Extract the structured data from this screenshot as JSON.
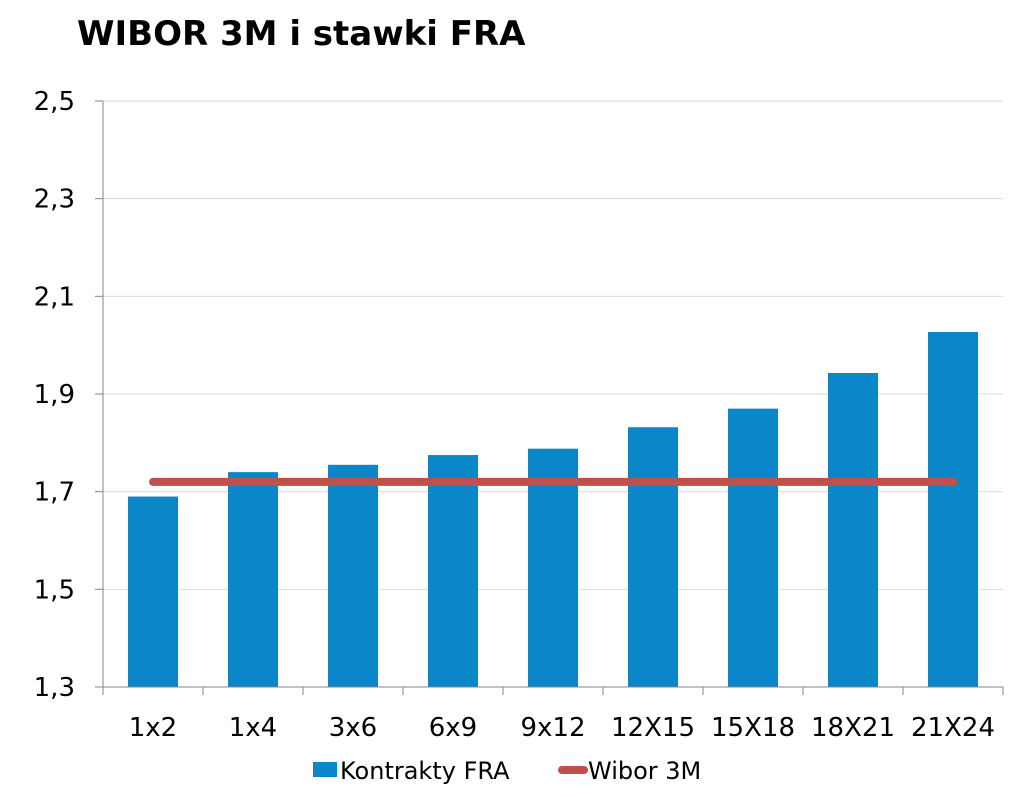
{
  "chart_data": {
    "type": "bar",
    "title": "WIBOR 3M i stawki FRA",
    "categories": [
      "1x2",
      "1x4",
      "3x6",
      "6x9",
      "9x12",
      "12X15",
      "15X18",
      "18X21",
      "21X24"
    ],
    "series": [
      {
        "name": "Kontrakty FRA",
        "type": "bar",
        "color": "#0a87c9",
        "values": [
          1.69,
          1.74,
          1.755,
          1.775,
          1.788,
          1.832,
          1.87,
          1.943,
          2.027
        ]
      },
      {
        "name": "Wibor 3M",
        "type": "line",
        "color": "#c0504d",
        "values": [
          1.72,
          1.72,
          1.72,
          1.72,
          1.72,
          1.72,
          1.72,
          1.72,
          1.72
        ]
      }
    ],
    "ylim": [
      1.3,
      2.5
    ],
    "yticks": [
      1.3,
      1.5,
      1.7,
      1.9,
      2.1,
      2.3,
      2.5
    ],
    "ytick_labels": [
      "1,3",
      "1,5",
      "1,7",
      "1,9",
      "2,1",
      "2,3",
      "2,5"
    ],
    "grid": true,
    "legend_position": "bottom"
  }
}
